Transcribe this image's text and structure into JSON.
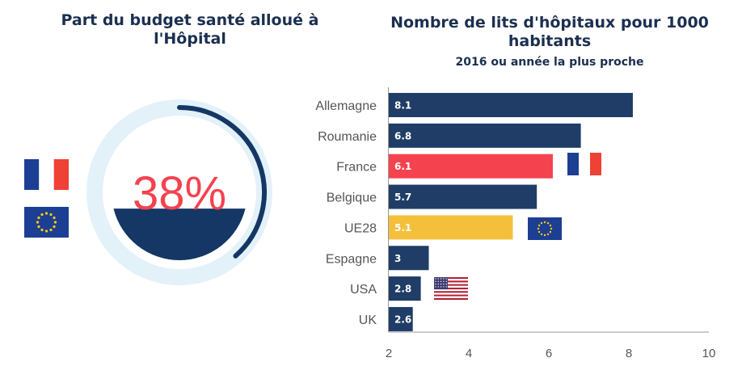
{
  "colors": {
    "navy": "#1f3d66",
    "title": "#1b2f50",
    "highlight_red": "#f5424f",
    "highlight_yellow": "#f4c03b",
    "ring_light": "#e3f1f9",
    "ring_dark": "#143765",
    "axis_text": "#555555"
  },
  "left_panel": {
    "title": "Part du budget santé alloué à l'Hôpital",
    "value_label": "38%",
    "flags": [
      "flag-france-icon",
      "flag-eu-icon"
    ]
  },
  "right_panel": {
    "title": "Nombre de lits d'hôpitaux pour 1000 habitants",
    "subtitle": "2016 ou année la plus proche"
  },
  "chart_data": [
    {
      "type": "pie",
      "title": "Part du budget santé alloué à l'Hôpital",
      "values": [
        38
      ],
      "labels": [
        "38%"
      ],
      "unit": "%"
    },
    {
      "type": "bar",
      "orientation": "horizontal",
      "title": "Nombre de lits d'hôpitaux pour 1000 habitants",
      "subtitle": "2016 ou année la plus proche",
      "categories": [
        "Allemagne",
        "Roumanie",
        "France",
        "Belgique",
        "UE28",
        "Espagne",
        "USA",
        "UK"
      ],
      "values": [
        8.1,
        6.8,
        6.1,
        5.7,
        5.1,
        3,
        2.8,
        2.6
      ],
      "value_labels": [
        "8.1",
        "6.8",
        "6.1",
        "5.7",
        "5.1",
        "3",
        "2.8",
        "2.6"
      ],
      "bar_colors": [
        "#1f3d66",
        "#1f3d66",
        "#f5424f",
        "#1f3d66",
        "#f4c03b",
        "#1f3d66",
        "#1f3d66",
        "#1f3d66"
      ],
      "flags": {
        "France": "flag-france-icon",
        "UE28": "flag-eu-icon",
        "USA": "flag-usa-icon"
      },
      "xlim": [
        2,
        10
      ],
      "xticks": [
        2,
        4,
        6,
        8,
        10
      ],
      "xlabel": "",
      "ylabel": "",
      "grid": false
    }
  ]
}
